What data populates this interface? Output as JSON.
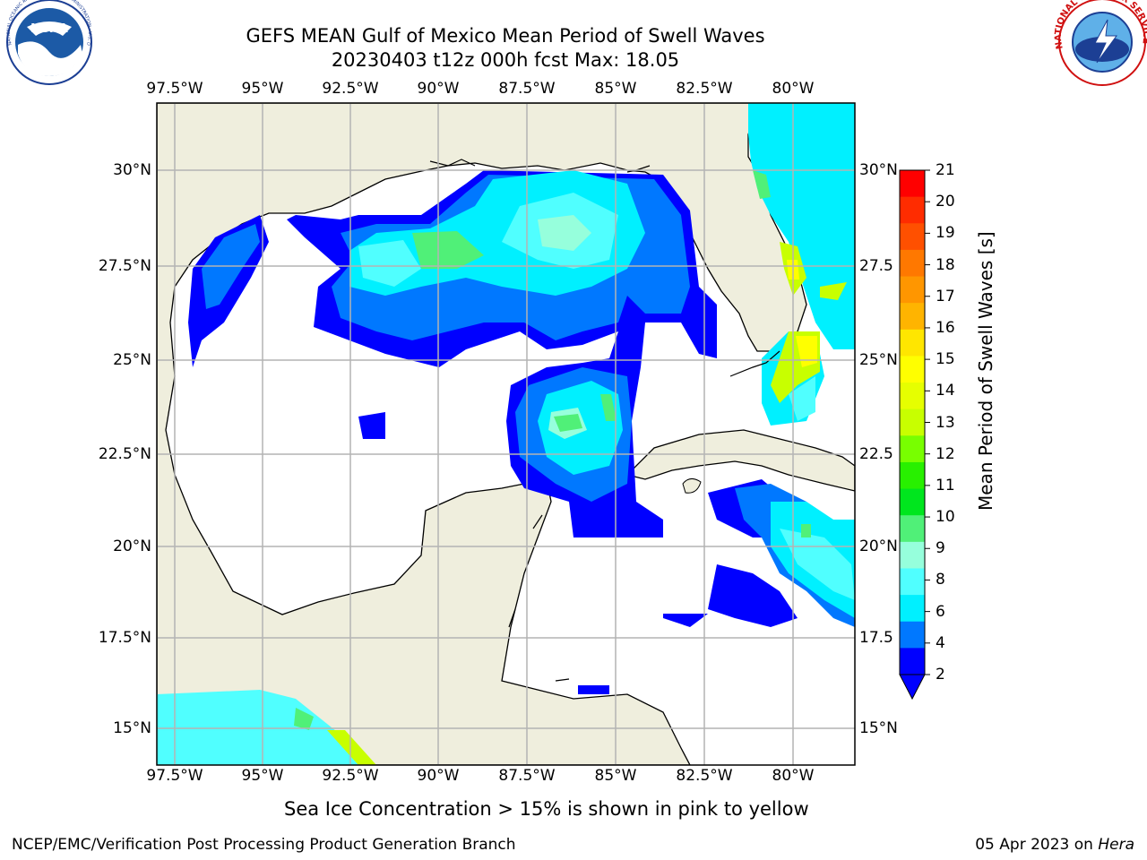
{
  "title": {
    "line1": "GEFS MEAN Gulf of Mexico Mean Period of Swell Waves",
    "line2": "20230403 t12z 000h fcst   Max: 18.05"
  },
  "map": {
    "lon_labels_top": [
      "97.5°W",
      "95°W",
      "92.5°W",
      "90°W",
      "87.5°W",
      "85°W",
      "82.5°W",
      "80°W"
    ],
    "lon_labels_bottom": [
      "97.5°W",
      "95°W",
      "92.5°W",
      "90°W",
      "87.5°W",
      "85°W",
      "82.5°W",
      "80°W"
    ],
    "lat_labels_left": [
      "30°N",
      "27.5°N",
      "25°N",
      "22.5°N",
      "20°N",
      "17.5°N",
      "15°N"
    ],
    "lat_labels_right": [
      "30°N",
      "27.5",
      "25°N",
      "22.5",
      "20°N",
      "17.5",
      "15°N"
    ],
    "land_color": "#efeedd",
    "ocean_color": "#ffffff",
    "grid_color": "#b4b4b4"
  },
  "colorbar": {
    "label": "Mean Period of Swell Waves [s]",
    "ticks": [
      "21",
      "20",
      "19",
      "18",
      "17",
      "16",
      "15",
      "14",
      "13",
      "12",
      "11",
      "10",
      "9",
      "8",
      "6",
      "4",
      "2"
    ],
    "colors": [
      "#ff0000",
      "#ff2c00",
      "#ff5000",
      "#ff7800",
      "#ff9600",
      "#ffb400",
      "#ffe600",
      "#ffff00",
      "#e6ff00",
      "#c8ff00",
      "#78ff00",
      "#28f000",
      "#00e61e",
      "#50f078",
      "#96ffdc",
      "#50ffff",
      "#00f0ff",
      "#0078ff",
      "#0000ff"
    ],
    "extend_color": "#0000ff"
  },
  "subtitle": "Sea Ice Concentration > 15% is shown in pink to yellow",
  "footer": {
    "left": "NCEP/EMC/Verification Post Processing Product Generation Branch",
    "right_prefix": "05 Apr 2023 on ",
    "right_host": "Hera"
  },
  "logos": {
    "noaa_text": "NOAA",
    "noaa_ring": "NATIONAL OCEANIC AND ATMOSPHERIC ADMINISTRATION · U.S. DEPARTMENT OF COMMERCE",
    "nws_ring": "NATIONAL WEATHER SERVICE"
  }
}
